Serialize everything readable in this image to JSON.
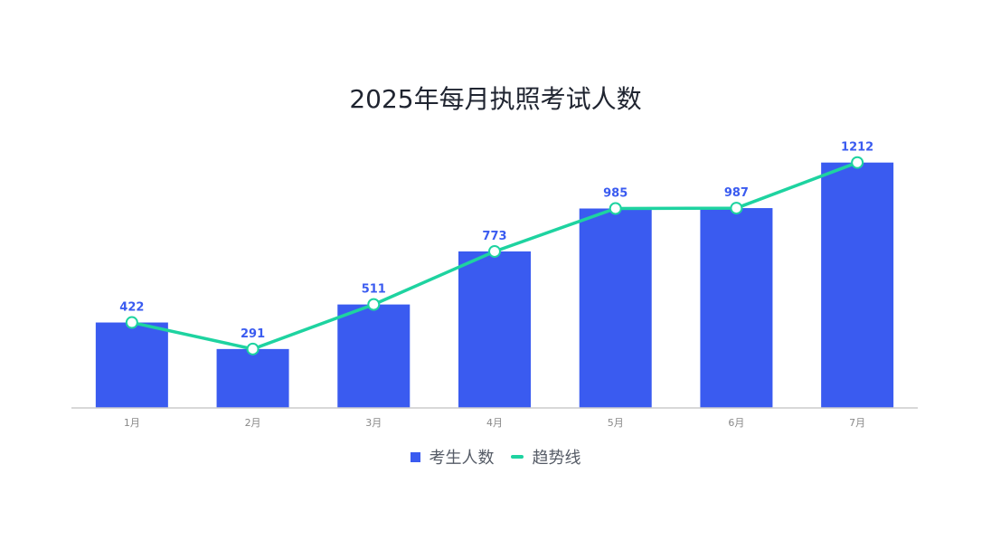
{
  "chart_data": {
    "type": "bar",
    "title": "2025年每月执照考试人数",
    "categories": [
      "1月",
      "2月",
      "3月",
      "4月",
      "5月",
      "6月",
      "7月"
    ],
    "series": [
      {
        "name": "考生人数",
        "type": "bar",
        "values": [
          422,
          291,
          511,
          773,
          985,
          987,
          1212
        ],
        "color": "#3a5bf0"
      },
      {
        "name": "趋势线",
        "type": "line",
        "values": [
          422,
          291,
          511,
          773,
          985,
          987,
          1212
        ],
        "color": "#1ed3a0"
      }
    ],
    "ylim": [
      0,
      1300
    ],
    "grid": false,
    "legend": "bottom-center",
    "data_labels": true
  }
}
